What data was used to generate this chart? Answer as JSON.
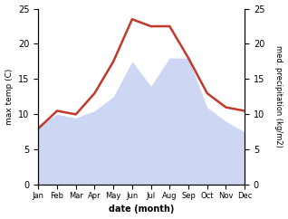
{
  "months": [
    "Jan",
    "Feb",
    "Mar",
    "Apr",
    "May",
    "Jun",
    "Jul",
    "Aug",
    "Sep",
    "Oct",
    "Nov",
    "Dec"
  ],
  "temp": [
    8.0,
    10.5,
    10.0,
    13.0,
    17.5,
    23.5,
    22.5,
    22.5,
    18.0,
    13.0,
    11.0,
    10.5
  ],
  "precip": [
    8.5,
    10.0,
    9.5,
    10.5,
    12.5,
    17.5,
    14.0,
    18.0,
    18.0,
    11.0,
    9.0,
    7.5
  ],
  "temp_color": "#c0392b",
  "precip_fill_color": "#c5cff0",
  "precip_fill_alpha": 0.85,
  "temp_lw": 1.8,
  "left_ylabel": "max temp (C)",
  "right_ylabel": "med. precipitation (kg/m2)",
  "xlabel": "date (month)",
  "ylim": [
    0,
    25
  ],
  "yticks_left": [
    0,
    5,
    10,
    15,
    20,
    25
  ],
  "yticks_right": [
    0,
    5,
    10,
    15,
    20,
    25
  ],
  "background": "#ffffff"
}
